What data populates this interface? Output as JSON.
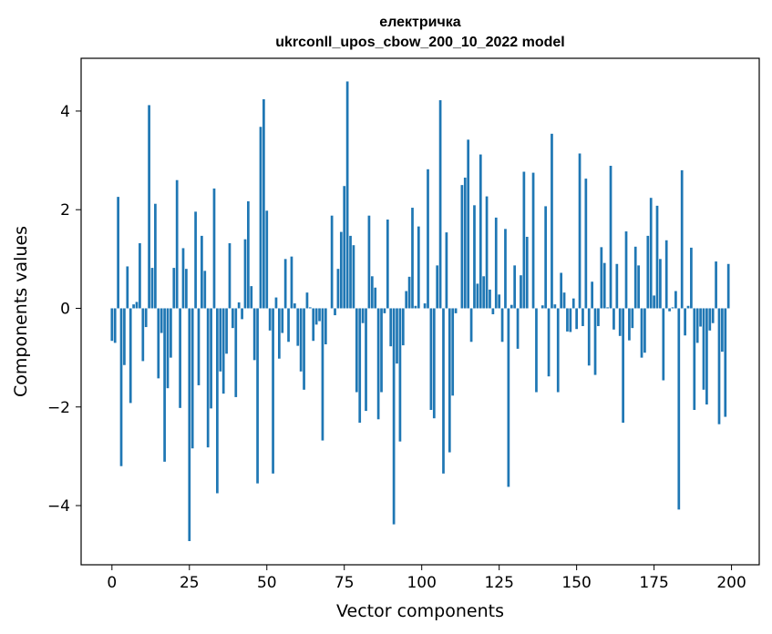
{
  "chart_data": {
    "type": "bar",
    "title_line1": "електричка",
    "title_line2": "ukrconll_upos_cbow_200_10_2022 model",
    "xlabel": "Vector components",
    "ylabel": "Components values",
    "xlim": [
      -9.95,
      208.95
    ],
    "ylim": [
      -5.2,
      5.07
    ],
    "x_ticks": [
      0,
      25,
      50,
      75,
      100,
      125,
      150,
      175,
      200
    ],
    "y_ticks": [
      -4,
      -2,
      0,
      2,
      4
    ],
    "x_tick_labels": [
      "0",
      "25",
      "50",
      "75",
      "100",
      "125",
      "150",
      "175",
      "200"
    ],
    "y_tick_labels": [
      "−4",
      "−2",
      "0",
      "2",
      "4"
    ],
    "bar_color": "#1f77b4",
    "bar_width": 0.8,
    "values": [
      -0.66,
      -0.7,
      2.26,
      -3.2,
      -1.15,
      0.85,
      -1.92,
      0.08,
      0.13,
      1.32,
      -1.07,
      -0.38,
      4.12,
      0.82,
      2.12,
      -1.42,
      -0.5,
      -3.11,
      -1.62,
      -1.0,
      0.82,
      2.6,
      -2.02,
      1.22,
      0.8,
      -4.72,
      -2.84,
      1.96,
      -1.56,
      1.47,
      0.76,
      -2.82,
      -2.03,
      2.43,
      -3.75,
      -1.28,
      -1.73,
      -0.92,
      1.32,
      -0.4,
      -1.8,
      0.12,
      -0.22,
      1.4,
      2.17,
      0.45,
      -1.05,
      -3.55,
      3.68,
      4.24,
      1.98,
      -0.45,
      -3.35,
      0.22,
      -1.02,
      -0.5,
      1.0,
      -0.68,
      1.05,
      0.1,
      -0.76,
      -1.28,
      -1.65,
      0.32,
      0.02,
      -0.66,
      -0.33,
      -0.26,
      -2.68,
      -0.73,
      0.0,
      1.88,
      -0.14,
      0.8,
      1.55,
      2.48,
      4.6,
      1.47,
      1.28,
      -1.7,
      -2.32,
      -0.3,
      -2.08,
      1.88,
      0.65,
      0.42,
      -2.25,
      -1.7,
      -0.1,
      1.8,
      -0.77,
      -4.38,
      -1.12,
      -2.7,
      -0.75,
      0.35,
      0.64,
      2.04,
      0.05,
      1.66,
      0.0,
      0.1,
      2.82,
      -2.06,
      -2.23,
      0.87,
      4.22,
      -3.35,
      1.54,
      -2.92,
      -1.77,
      -0.1,
      0.0,
      2.5,
      2.65,
      3.42,
      -0.68,
      2.09,
      0.5,
      3.12,
      0.65,
      2.27,
      0.38,
      -0.12,
      1.84,
      0.28,
      -0.68,
      1.61,
      -3.62,
      0.07,
      0.87,
      -0.82,
      0.67,
      2.77,
      1.45,
      0.0,
      2.75,
      -1.7,
      0.0,
      0.06,
      2.07,
      -1.38,
      3.54,
      0.08,
      -1.7,
      0.72,
      0.32,
      -0.47,
      -0.48,
      0.2,
      -0.42,
      3.14,
      -0.36,
      2.63,
      -1.16,
      0.54,
      -1.35,
      -0.36,
      1.24,
      0.92,
      0.02,
      2.89,
      -0.43,
      0.9,
      -0.56,
      -2.32,
      1.56,
      -0.65,
      -0.4,
      1.25,
      0.87,
      -1.0,
      -0.9,
      1.47,
      2.24,
      0.26,
      2.08,
      1.0,
      -1.46,
      1.38,
      -0.06,
      0.02,
      0.35,
      -4.08,
      2.8,
      -0.55,
      0.05,
      1.23,
      -2.06,
      -0.7,
      -0.37,
      -1.65,
      -1.95,
      -0.45,
      -0.3,
      0.95,
      -2.35,
      -0.88,
      -2.2,
      0.9
    ]
  }
}
